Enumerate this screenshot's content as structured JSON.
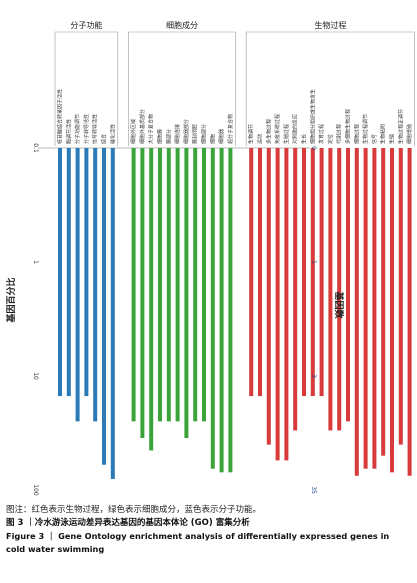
{
  "chart_data": {
    "type": "bar",
    "orientation": "vertical-hanging",
    "y_left_label": "基因百分比",
    "y_right_label": "基因数",
    "y_left_scale": "log",
    "y_left_ticks": [
      "0.1",
      "1",
      "10",
      "100"
    ],
    "y_right_ticks": [
      "0",
      "1",
      "3",
      "35"
    ],
    "ylim": [
      0.1,
      100
    ],
    "grid": false,
    "groups": [
      {
        "name": "分子功能",
        "color": "#2a7ab8",
        "categories": [
          "核苷酸结合转录因子活性",
          "酶调节活性",
          "分子功能调节",
          "分子转导活性",
          "信号转导活性",
          "结合",
          "催化活性"
        ],
        "values": [
          15,
          15,
          25,
          15,
          25,
          60,
          80
        ]
      },
      {
        "name": "细胞成分",
        "color": "#3aa33a",
        "categories": [
          "细胞外区域",
          "细胞外基质部分",
          "大分子复合物",
          "细胞膜",
          "膜部分",
          "细胞连接",
          "细胞器部分",
          "膜封闭腔",
          "细胞部分",
          "细胞",
          "细胞器",
          "超分子复合物"
        ],
        "values": [
          25,
          35,
          45,
          25,
          25,
          25,
          35,
          25,
          25,
          65,
          70,
          70
        ]
      },
      {
        "name": "生物过程",
        "color": "#d63a3a",
        "categories": [
          "生物调节",
          "运动",
          "多生物过程",
          "免疫系统过程",
          "生殖过程",
          "对刺激的反应",
          "生长",
          "细胞组分组织或生物发生",
          "发育过程",
          "定位",
          "代谢过程",
          "多细胞生物过程",
          "细胞过程",
          "生物过程调节",
          "信号",
          "生物粘附",
          "生殖",
          "生物过程正调节",
          "细胞增殖"
        ],
        "values": [
          15,
          15,
          40,
          55,
          55,
          30,
          15,
          15,
          15,
          30,
          30,
          25,
          75,
          65,
          65,
          50,
          70,
          40,
          75
        ]
      }
    ]
  },
  "caption": {
    "note": "图注：红色表示生物过程，绿色表示细胞成分，蓝色表示分子功能。",
    "title_cn": "图 3 ｜冷水游泳运动差异表达基因的基因本体论 (GO) 富集分析",
    "title_en": "Figure 3 ｜ Gene Ontology enrichment analysis of differentially expressed genes in cold water swimming"
  }
}
